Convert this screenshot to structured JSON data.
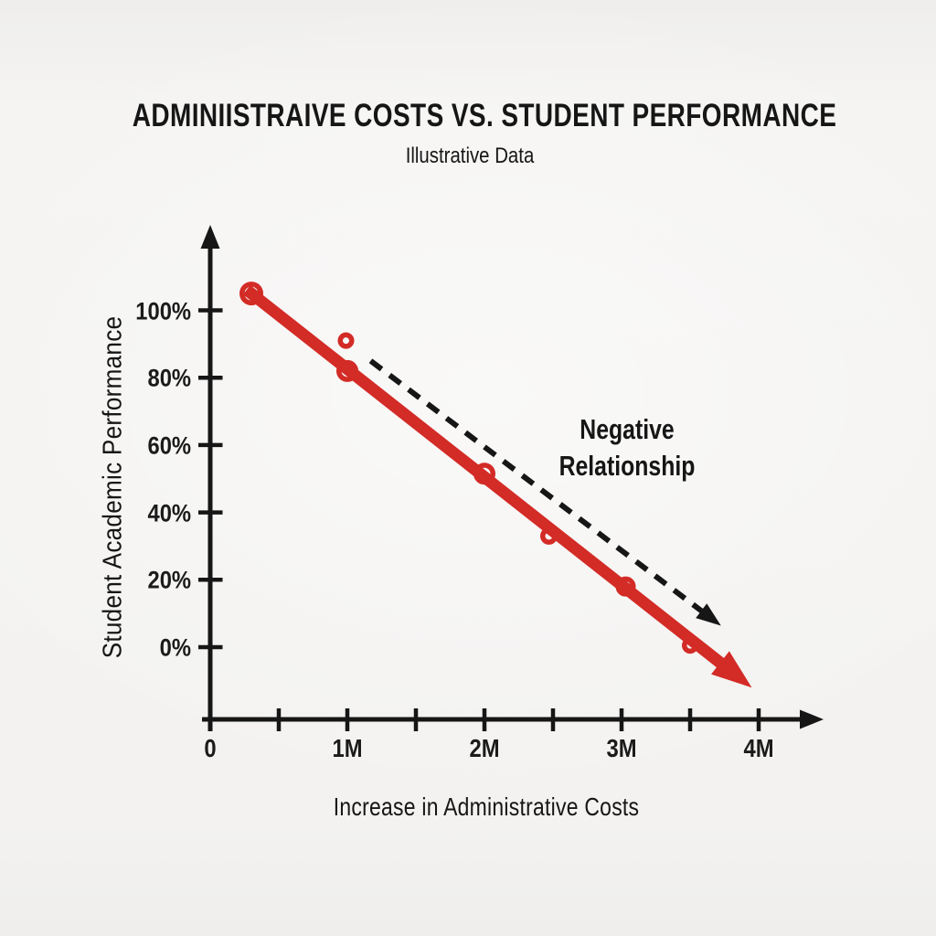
{
  "chart_data": {
    "type": "scatter",
    "title": "ADMINIISTRAIVE COSTS VS. STUDENT PERFORMANCE",
    "subtitle": "Illustrative Data",
    "xlabel": "Increase in Administrative Costs",
    "ylabel": "Student Academic Performance",
    "x_unit": "millions",
    "xlim": [
      0,
      4.45
    ],
    "ylim": [
      -14,
      116
    ],
    "grid": false,
    "legend": null,
    "x_ticks": [
      {
        "x": 0,
        "label": "0"
      },
      {
        "x": 0.5,
        "label": ""
      },
      {
        "x": 1,
        "label": "1M"
      },
      {
        "x": 1.5,
        "label": ""
      },
      {
        "x": 2,
        "label": "2M"
      },
      {
        "x": 2.5,
        "label": ""
      },
      {
        "x": 3,
        "label": "3M"
      },
      {
        "x": 3.5,
        "label": ""
      },
      {
        "x": 4,
        "label": "4M"
      }
    ],
    "y_ticks": [
      {
        "y": 0,
        "label": "0%"
      },
      {
        "y": 20,
        "label": "20%"
      },
      {
        "y": 40,
        "label": "40%"
      },
      {
        "y": 60,
        "label": "60%"
      },
      {
        "y": 80,
        "label": "80%"
      },
      {
        "y": 100,
        "label": "100%"
      }
    ],
    "points": [
      {
        "x": 0.3,
        "y": 105,
        "r": 13
      },
      {
        "x": 0.99,
        "y": 91,
        "r": 9
      },
      {
        "x": 1.0,
        "y": 82,
        "r": 12
      },
      {
        "x": 2.0,
        "y": 51.5,
        "r": 12
      },
      {
        "x": 2.47,
        "y": 33,
        "r": 9.5
      },
      {
        "x": 3.03,
        "y": 18,
        "r": 11
      },
      {
        "x": 3.5,
        "y": 0.5,
        "r": 9
      }
    ],
    "trend_line": {
      "from": {
        "x": 0.3,
        "y": 105
      },
      "to": {
        "x": 3.95,
        "y": -12
      }
    },
    "annotation_arrow": {
      "from": {
        "x": 1.17,
        "y": 85
      },
      "to": {
        "x": 3.64,
        "y": 9
      }
    },
    "annotation": {
      "line1": "Negative",
      "line2": "Relationship"
    },
    "colors": {
      "accent_red": "#d32b26",
      "ink": "#161616",
      "background": "#f4f3f1"
    }
  }
}
